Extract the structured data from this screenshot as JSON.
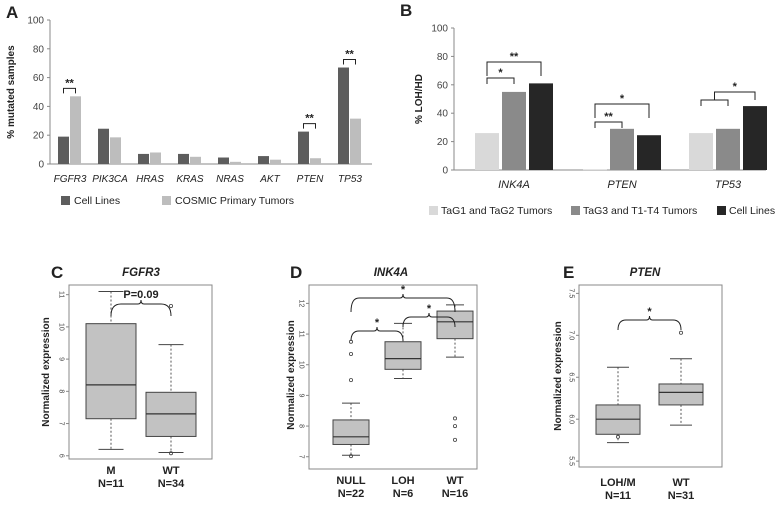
{
  "colors": {
    "dark": "#5d5d5d",
    "light": "#bdbdbd",
    "b_light": "#d9d9d9",
    "b_mid": "#8a8a8a",
    "b_dark": "#262626",
    "box_fill": "#c2c2c2",
    "axis": "#888888"
  },
  "chart_data": [
    {
      "panel": "A",
      "type": "bar",
      "title": "",
      "xlabel": "",
      "ylabel": "% mutated samples",
      "ylim": [
        0,
        100
      ],
      "yticks": [
        "0",
        "20",
        "40",
        "60",
        "80",
        "100"
      ],
      "categories": [
        "FGFR3",
        "PIK3CA",
        "HRAS",
        "KRAS",
        "NRAS",
        "AKT",
        "PTEN",
        "TP53"
      ],
      "series": [
        {
          "name": "Cell Lines",
          "values": [
            19,
            24.5,
            7,
            7,
            4.5,
            5.5,
            22.5,
            67
          ]
        },
        {
          "name": "COSMIC Primary Tumors",
          "values": [
            47,
            18.5,
            8,
            5,
            1.5,
            3,
            4,
            31.5
          ]
        }
      ],
      "annotations": [
        {
          "category": "FGFR3",
          "text": "**"
        },
        {
          "category": "PTEN",
          "text": "**"
        },
        {
          "category": "TP53",
          "text": "**"
        }
      ],
      "legend_position": "bottom"
    },
    {
      "panel": "B",
      "type": "bar",
      "title": "",
      "xlabel": "",
      "ylabel": "% LOH/HD",
      "ylim": [
        0,
        100
      ],
      "yticks": [
        "0",
        "20",
        "40",
        "60",
        "80",
        "100"
      ],
      "categories": [
        "INK4A",
        "PTEN",
        "TP53"
      ],
      "series": [
        {
          "name": "TaG1 and TaG2 Tumors",
          "values": [
            26,
            0.5,
            26
          ]
        },
        {
          "name": "TaG3 and T1-T4 Tumors",
          "values": [
            55,
            29,
            29
          ]
        },
        {
          "name": "Cell Lines",
          "values": [
            61,
            24.5,
            45
          ]
        }
      ],
      "annotations": [
        {
          "category": "INK4A",
          "text": "*",
          "pair": "TaG1-TaG3"
        },
        {
          "category": "INK4A",
          "text": "**",
          "pair": "TaG1-Cell"
        },
        {
          "category": "PTEN",
          "text": "**",
          "pair": "TaG1-TaG3"
        },
        {
          "category": "PTEN",
          "text": "*",
          "pair": "TaG1-Cell"
        },
        {
          "category": "TP53",
          "text": "*",
          "pair": "Tumors-Cell"
        }
      ],
      "legend_position": "bottom"
    },
    {
      "panel": "C",
      "type": "boxplot",
      "title": "FGFR3",
      "xlabel": "",
      "ylabel": "Normalized expression",
      "ylim": [
        5.9,
        11.3
      ],
      "yticks": [
        "6",
        "7",
        "8",
        "9",
        "10",
        "11"
      ],
      "groups": [
        {
          "name": "M",
          "n_label": "N=11",
          "min": 6.2,
          "q1": 7.15,
          "median": 8.2,
          "q3": 10.1,
          "max": 11.1,
          "outliers": []
        },
        {
          "name": "WT",
          "n_label": "N=34",
          "min": 6.1,
          "q1": 6.6,
          "median": 7.3,
          "q3": 7.97,
          "max": 9.45,
          "outliers": [
            6.08,
            10.65
          ]
        }
      ],
      "annotation": "P=0.09"
    },
    {
      "panel": "D",
      "type": "boxplot",
      "title": "INK4A",
      "xlabel": "",
      "ylabel": "Normalized expression",
      "ylim": [
        6.6,
        12.6
      ],
      "yticks": [
        "7",
        "8",
        "9",
        "10",
        "11",
        "12"
      ],
      "groups": [
        {
          "name": "NULL",
          "n_label": "N=22",
          "min": 7.05,
          "q1": 7.4,
          "median": 7.65,
          "q3": 8.2,
          "max": 8.75,
          "outliers": [
            7.02,
            9.5,
            10.35,
            10.75
          ]
        },
        {
          "name": "LOH",
          "n_label": "N=6",
          "min": 9.55,
          "q1": 9.85,
          "median": 10.2,
          "q3": 10.75,
          "max": 11.35,
          "outliers": []
        },
        {
          "name": "WT",
          "n_label": "N=16",
          "min": 10.25,
          "q1": 10.85,
          "median": 11.4,
          "q3": 11.75,
          "max": 11.95,
          "outliers": [
            8.25,
            8.0,
            7.55
          ]
        }
      ],
      "annotations": [
        "*",
        "*",
        "*"
      ]
    },
    {
      "panel": "E",
      "type": "boxplot",
      "title": "PTEN",
      "xlabel": "",
      "ylabel": "Normalized expression",
      "ylim": [
        5.43,
        7.6
      ],
      "yticks": [
        "5.5",
        "6.0",
        "6.5",
        "7.0",
        "7.5"
      ],
      "groups": [
        {
          "name": "LOH/M",
          "n_label": "N=11",
          "min": 5.72,
          "q1": 5.82,
          "median": 6.0,
          "q3": 6.17,
          "max": 6.62,
          "outliers": [
            5.79
          ]
        },
        {
          "name": "WT",
          "n_label": "N=31",
          "min": 5.93,
          "q1": 6.17,
          "median": 6.32,
          "q3": 6.42,
          "max": 6.72,
          "outliers": [
            7.03
          ]
        }
      ],
      "annotation": "*"
    }
  ]
}
